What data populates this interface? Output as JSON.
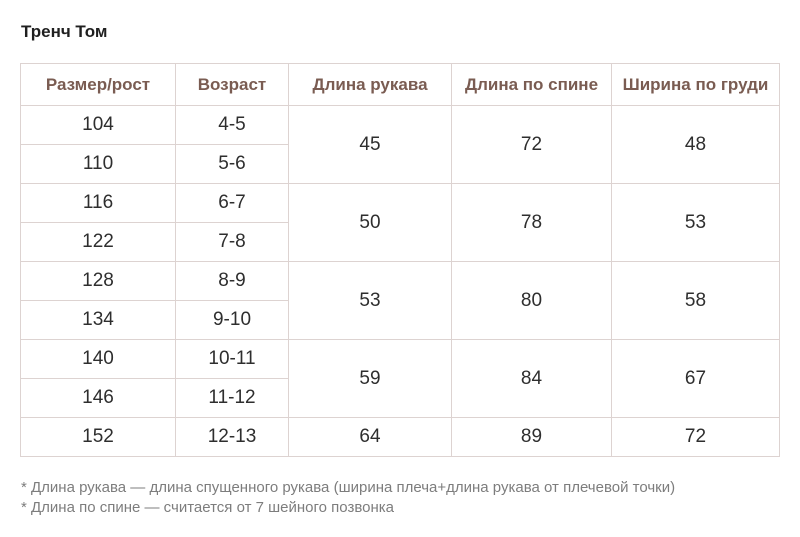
{
  "title": "Тренч Том",
  "table": {
    "headers": [
      "Размер/рост",
      "Возраст",
      "Длина рукава",
      "Длина по спине",
      "Ширина по груди"
    ],
    "groups": [
      {
        "rows": [
          {
            "size": "104",
            "age": "4-5"
          },
          {
            "size": "110",
            "age": "5-6"
          }
        ],
        "sleeve": "45",
        "back": "72",
        "chest": "48"
      },
      {
        "rows": [
          {
            "size": "116",
            "age": "6-7"
          },
          {
            "size": "122",
            "age": "7-8"
          }
        ],
        "sleeve": "50",
        "back": "78",
        "chest": "53"
      },
      {
        "rows": [
          {
            "size": "128",
            "age": "8-9"
          },
          {
            "size": "134",
            "age": "9-10"
          }
        ],
        "sleeve": "53",
        "back": "80",
        "chest": "58"
      },
      {
        "rows": [
          {
            "size": "140",
            "age": "10-11"
          },
          {
            "size": "146",
            "age": "11-12"
          }
        ],
        "sleeve": "59",
        "back": "84",
        "chest": "67"
      },
      {
        "rows": [
          {
            "size": "152",
            "age": "12-13"
          }
        ],
        "sleeve": "64",
        "back": "89",
        "chest": "72"
      }
    ]
  },
  "notes": [
    "* Длина рукава — длина спущенного рукава (ширина плеча+длина рукава от плечевой точки)",
    "* Длина по спине — считается от 7 шейного позвонка"
  ],
  "colors": {
    "header_text": "#7a5c52",
    "border": "#ddd3d1",
    "note_text": "#7d7d7d"
  }
}
